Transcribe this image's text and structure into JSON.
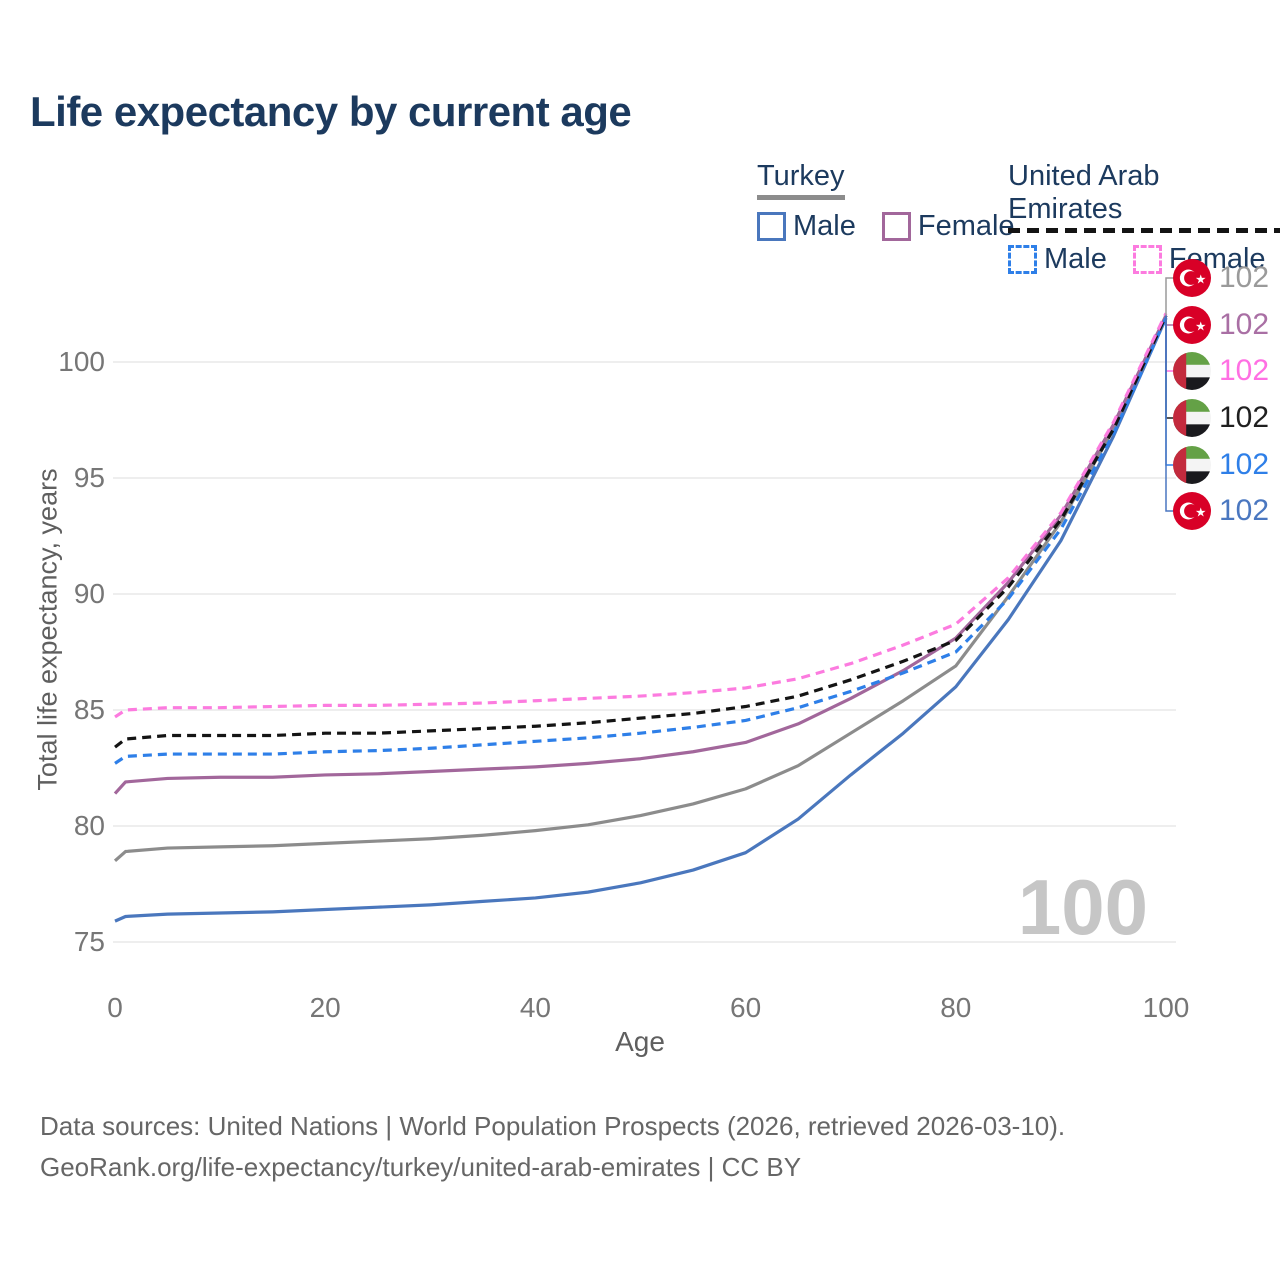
{
  "title": "Life expectancy by current age",
  "legend": {
    "groups": [
      {
        "title": "Turkey",
        "underline_style": "solid",
        "underline_color": "#8c8c8c",
        "items": [
          {
            "label": "Male",
            "color": "#4a77bd",
            "dashed": false
          },
          {
            "label": "Female",
            "color": "#a2679b",
            "dashed": false
          }
        ]
      },
      {
        "title": "United Arab Emirates",
        "underline_style": "dashed",
        "underline_color": "#141414",
        "items": [
          {
            "label": "Male",
            "color": "#2e7fe8",
            "dashed": true
          },
          {
            "label": "Female",
            "color": "#fc7bdf",
            "dashed": true
          }
        ]
      }
    ]
  },
  "chart_data": {
    "type": "line",
    "title": "Life expectancy by current age",
    "xlabel": "Age",
    "ylabel": "Total life expectancy, years",
    "x_ticks": [
      0,
      20,
      40,
      60,
      80,
      100
    ],
    "y_ticks": [
      75,
      80,
      85,
      90,
      95,
      100
    ],
    "xlim": [
      0,
      100
    ],
    "ylim": [
      74.6,
      102.6
    ],
    "grid": "horizontal",
    "legend_position": "top-right",
    "x": [
      0,
      1,
      5,
      10,
      15,
      20,
      25,
      30,
      35,
      40,
      45,
      50,
      55,
      60,
      65,
      70,
      75,
      80,
      85,
      90,
      95,
      100
    ],
    "series": [
      {
        "name": "Turkey Both sexes",
        "country": "turkey",
        "color": "#8c8c8c",
        "dashed": false,
        "values": [
          78.5,
          78.9,
          79.05,
          79.1,
          79.15,
          79.25,
          79.35,
          79.45,
          79.6,
          79.8,
          80.05,
          80.45,
          80.95,
          81.6,
          82.6,
          84.0,
          85.4,
          86.9,
          89.9,
          93.1,
          97.1,
          102.0
        ]
      },
      {
        "name": "Turkey Male",
        "country": "turkey",
        "color": "#4a77bd",
        "dashed": false,
        "values": [
          75.9,
          76.1,
          76.2,
          76.25,
          76.3,
          76.4,
          76.5,
          76.6,
          76.75,
          76.9,
          77.15,
          77.55,
          78.1,
          78.85,
          80.3,
          82.2,
          84.0,
          86.0,
          88.9,
          92.3,
          96.8,
          101.9
        ]
      },
      {
        "name": "Turkey Female",
        "country": "turkey",
        "color": "#a2679b",
        "dashed": false,
        "values": [
          81.4,
          81.9,
          82.05,
          82.1,
          82.1,
          82.2,
          82.25,
          82.35,
          82.45,
          82.55,
          82.7,
          82.9,
          83.2,
          83.6,
          84.4,
          85.5,
          86.7,
          88.1,
          90.5,
          93.4,
          97.3,
          102.0
        ]
      },
      {
        "name": "United Arab Emirates Male",
        "country": "uae",
        "color": "#2e7fe8",
        "dashed": true,
        "values": [
          82.7,
          83.0,
          83.1,
          83.1,
          83.1,
          83.2,
          83.25,
          83.35,
          83.5,
          83.65,
          83.8,
          84.0,
          84.25,
          84.55,
          85.1,
          85.8,
          86.6,
          87.5,
          89.8,
          92.8,
          96.9,
          101.9
        ]
      },
      {
        "name": "United Arab Emirates Both sexes",
        "country": "uae",
        "color": "#141414",
        "dashed": true,
        "values": [
          83.4,
          83.75,
          83.9,
          83.9,
          83.9,
          84.0,
          84.0,
          84.1,
          84.2,
          84.3,
          84.45,
          84.65,
          84.85,
          85.15,
          85.6,
          86.3,
          87.1,
          88.0,
          90.3,
          93.2,
          97.1,
          102.0
        ]
      },
      {
        "name": "United Arab Emirates Female",
        "country": "uae",
        "color": "#fc7bdf",
        "dashed": true,
        "values": [
          84.7,
          85.0,
          85.1,
          85.1,
          85.15,
          85.2,
          85.2,
          85.25,
          85.3,
          85.4,
          85.5,
          85.6,
          85.75,
          85.95,
          86.35,
          87.0,
          87.8,
          88.7,
          90.7,
          93.5,
          97.4,
          102.1
        ]
      }
    ],
    "end_labels": [
      {
        "flag": "turkey",
        "value": "102",
        "color": "#9a9a9a"
      },
      {
        "flag": "turkey",
        "value": "102",
        "color": "#a96fa4"
      },
      {
        "flag": "uae",
        "value": "102",
        "color": "#ff6fe3"
      },
      {
        "flag": "uae",
        "value": "102",
        "color": "#1f1f1f"
      },
      {
        "flag": "uae",
        "value": "102",
        "color": "#2e7fe8"
      },
      {
        "flag": "turkey",
        "value": "102",
        "color": "#4a77c0"
      }
    ]
  },
  "watermark": "100",
  "footer": {
    "line1": "Data sources: United Nations | World Population Prospects (2026, retrieved 2026-03-10).",
    "line2": "GeoRank.org/life-expectancy/turkey/united-arab-emirates | CC BY"
  },
  "colors": {
    "title_text": "#1c3a5e",
    "axis_text": "#767676",
    "grid": "#e9e9e9",
    "watermark": "#c6c6c6",
    "footer_text": "#666666",
    "turkey_flag_red": "#d80027",
    "uae_flag_green": "#64a146",
    "uae_flag_red": "#c32a3d"
  }
}
